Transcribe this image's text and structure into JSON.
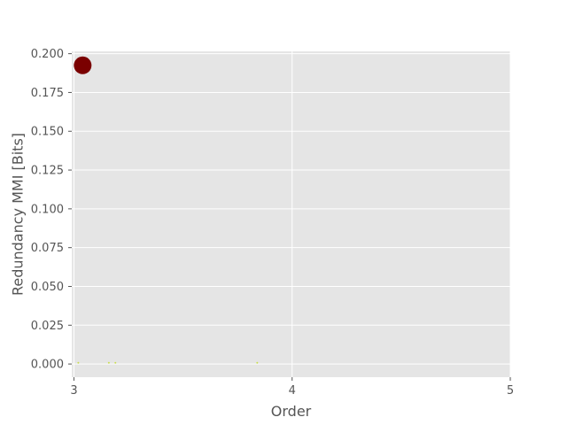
{
  "chart_data": {
    "type": "scatter",
    "title": "",
    "xlabel": "Order",
    "ylabel": "Redundancy MMI [Bits]",
    "xlim": [
      2.99,
      5.0
    ],
    "ylim": [
      -0.0085,
      0.2015
    ],
    "x_ticks": [
      3,
      4,
      5
    ],
    "x_tick_labels": [
      "3",
      "4",
      "5"
    ],
    "y_ticks": [
      0.0,
      0.025,
      0.05,
      0.075,
      0.1,
      0.125,
      0.15,
      0.175,
      0.2
    ],
    "y_tick_labels": [
      "0.000",
      "0.025",
      "0.050",
      "0.075",
      "0.100",
      "0.125",
      "0.150",
      "0.175",
      "0.200"
    ],
    "grid": true,
    "legend": "none",
    "background_color": "#e5e5e5",
    "grid_color": "#ffffff",
    "points": [
      {
        "x": 3.04,
        "y": 0.1925,
        "size": 1.0,
        "color": "#7a0000"
      },
      {
        "x": 3.02,
        "y": 0.0008,
        "size": 0.06,
        "color": "#c8dc50"
      },
      {
        "x": 3.16,
        "y": 0.0008,
        "size": 0.06,
        "color": "#c8dc50"
      },
      {
        "x": 3.19,
        "y": 0.0008,
        "size": 0.06,
        "color": "#c8dc50"
      },
      {
        "x": 3.84,
        "y": 0.0008,
        "size": 0.06,
        "color": "#c8dc50"
      }
    ]
  }
}
